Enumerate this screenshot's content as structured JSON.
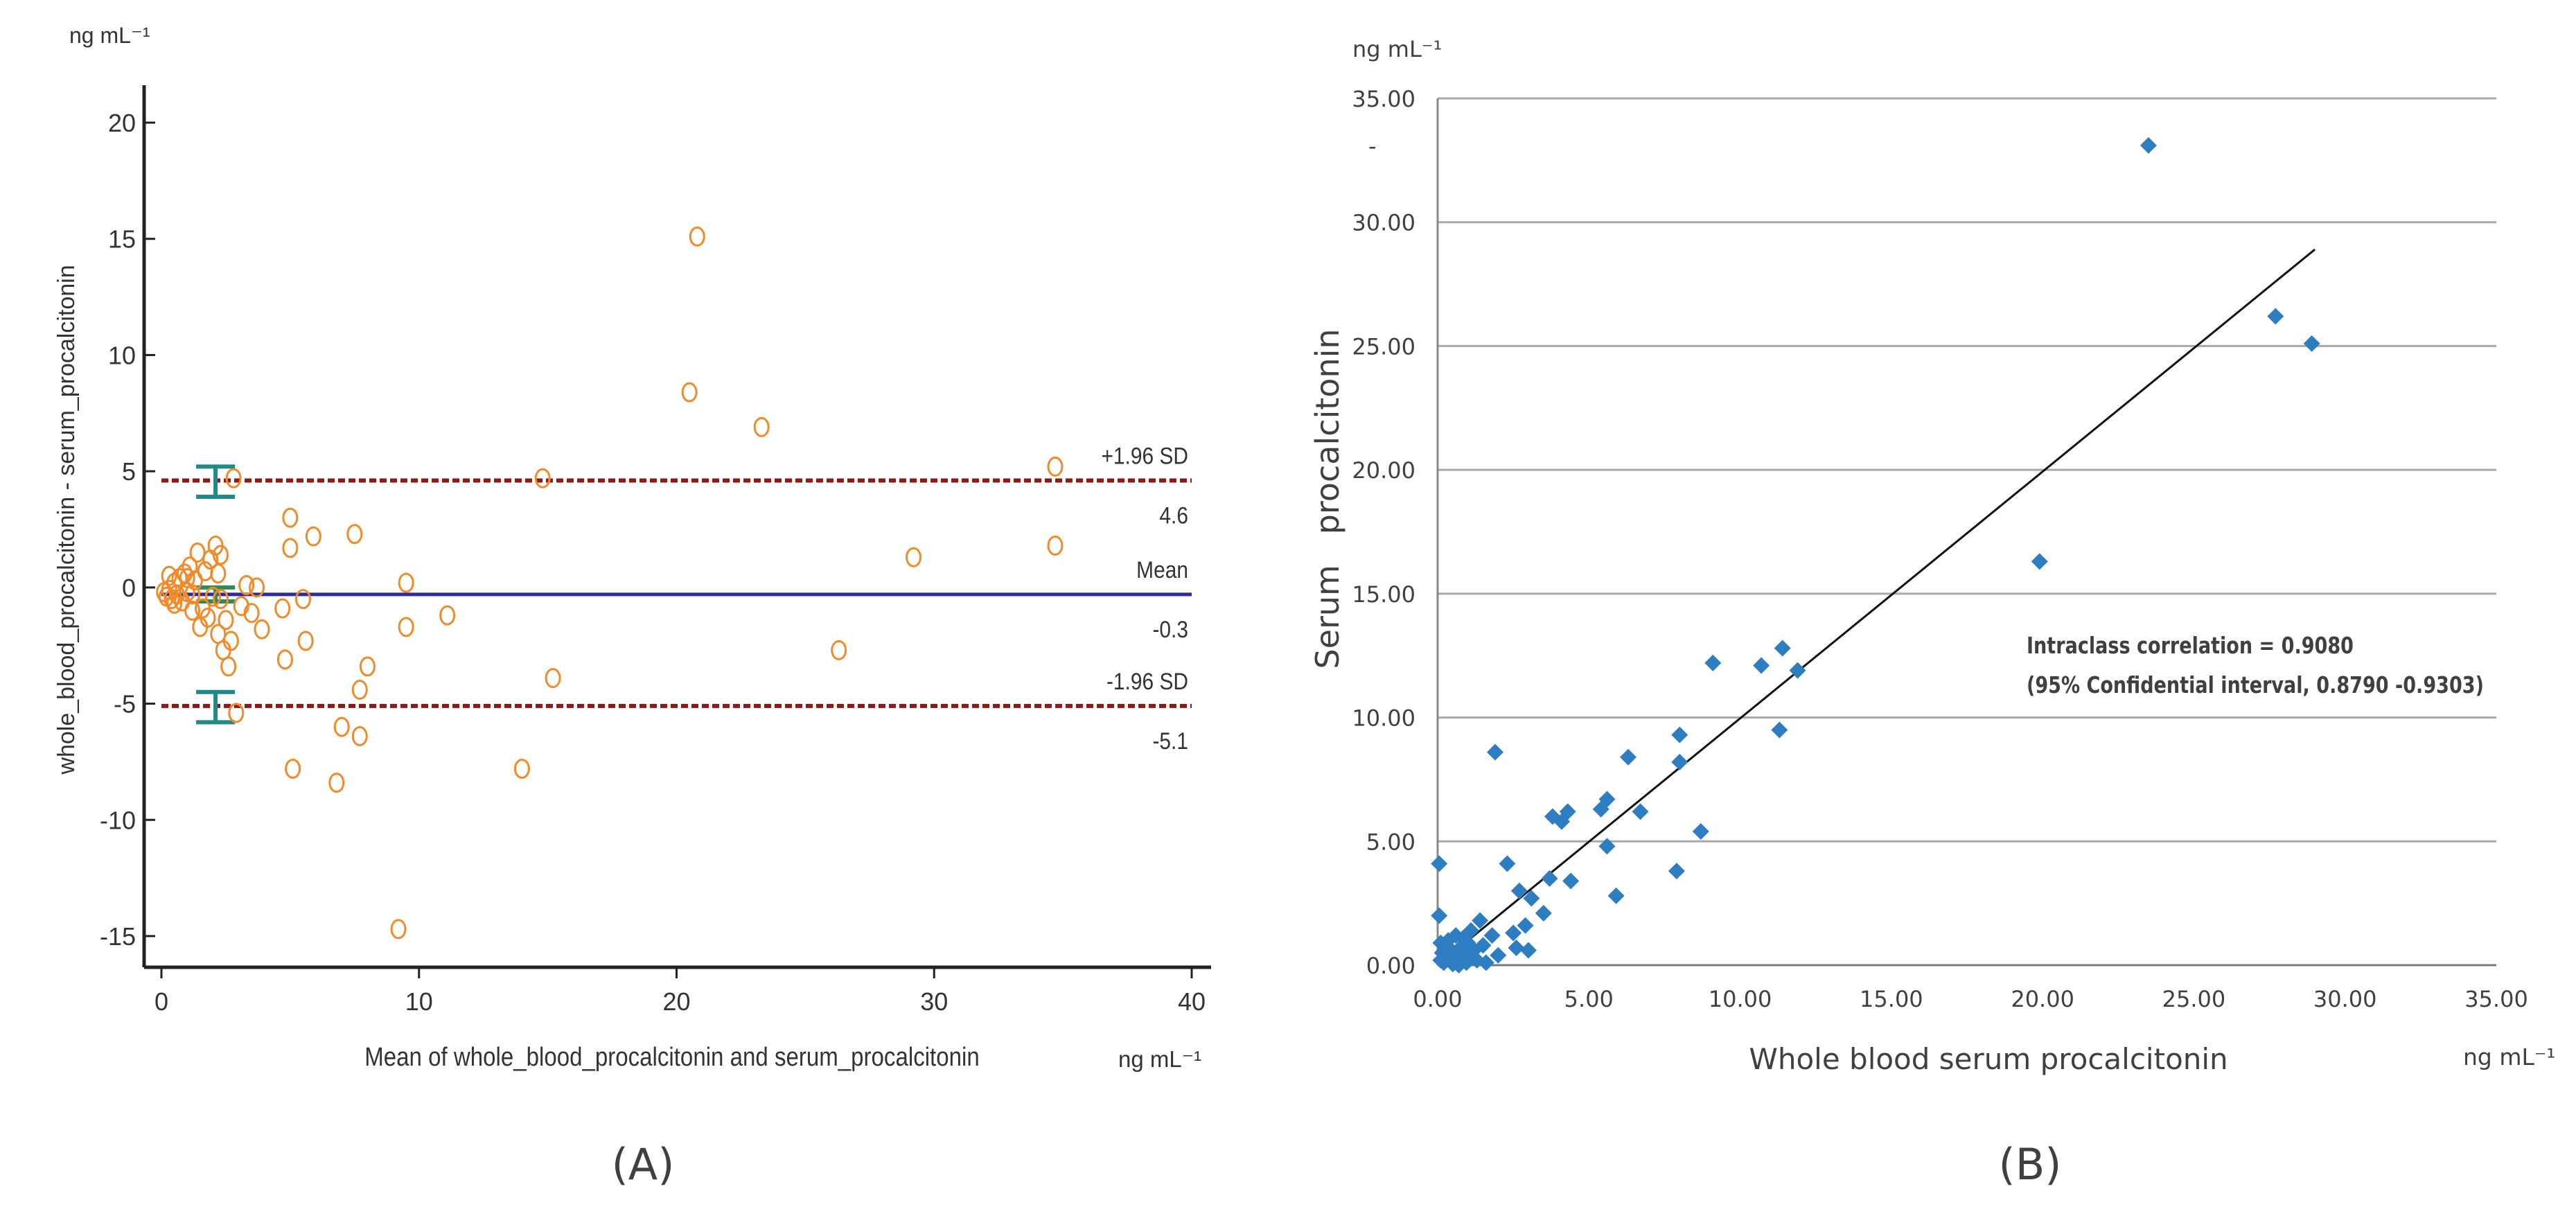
{
  "figure": {
    "panel_a_caption": "(A)",
    "panel_b_caption": "(B)"
  },
  "chart_data": [
    {
      "type": "scatter",
      "subtype": "bland-altman",
      "title": "",
      "ylabel": "whole_blood_procalcitonin - serum_procalcitonin",
      "xlabel": "Mean of whole_blood_procalcitonin and serum_procalcitonin",
      "x_unit": "ng mL⁻¹",
      "y_unit": "ng mL⁻¹",
      "xlim": [
        0,
        40
      ],
      "ylim": [
        -15,
        20
      ],
      "x_ticks": [
        0,
        10,
        20,
        30,
        40
      ],
      "y_ticks": [
        -15,
        -10,
        -5,
        0,
        5,
        10,
        15,
        20
      ],
      "reference_lines": [
        {
          "name": "upper_loa",
          "value": 4.6,
          "label": "+1.96 SD",
          "value_label": "4.6",
          "color": "#8b1a1a",
          "style": "dashed"
        },
        {
          "name": "mean",
          "value": -0.3,
          "label": "Mean",
          "value_label": "-0.3",
          "color": "#2b2b9e",
          "style": "solid"
        },
        {
          "name": "lower_loa",
          "value": -5.1,
          "label": "-1.96 SD",
          "value_label": "-5.1",
          "color": "#8b1a1a",
          "style": "dashed"
        }
      ],
      "error_bars": [
        {
          "x": 2.1,
          "center": 4.6,
          "low": 3.9,
          "high": 5.2,
          "color": "#1f8a86"
        },
        {
          "x": 2.1,
          "center": -0.3,
          "low": -0.6,
          "high": 0.0,
          "color": "#2e8b57"
        },
        {
          "x": 2.1,
          "center": -5.1,
          "low": -5.8,
          "high": -4.5,
          "color": "#1f8a86"
        }
      ],
      "points": [
        [
          0.1,
          -0.2
        ],
        [
          0.2,
          -0.4
        ],
        [
          0.3,
          -0.1
        ],
        [
          0.4,
          -0.5
        ],
        [
          0.5,
          0.2
        ],
        [
          0.6,
          -0.3
        ],
        [
          0.7,
          0.4
        ],
        [
          0.8,
          -0.6
        ],
        [
          0.9,
          0.6
        ],
        [
          1.0,
          -0.2
        ],
        [
          1.1,
          0.9
        ],
        [
          1.2,
          -1.0
        ],
        [
          1.3,
          0.3
        ],
        [
          1.4,
          1.5
        ],
        [
          1.5,
          -1.7
        ],
        [
          1.6,
          -0.9
        ],
        [
          1.7,
          0.7
        ],
        [
          1.8,
          -1.3
        ],
        [
          1.9,
          1.2
        ],
        [
          2.0,
          -0.4
        ],
        [
          2.1,
          1.8
        ],
        [
          2.2,
          -2.0
        ],
        [
          2.3,
          1.4
        ],
        [
          2.4,
          -2.7
        ],
        [
          2.5,
          -1.4
        ],
        [
          2.6,
          -3.4
        ],
        [
          2.7,
          -2.3
        ],
        [
          2.8,
          4.7
        ],
        [
          2.9,
          -5.4
        ],
        [
          3.1,
          -0.8
        ],
        [
          0.3,
          0.5
        ],
        [
          0.5,
          -0.7
        ],
        [
          1.0,
          0.4
        ],
        [
          1.2,
          -0.3
        ],
        [
          2.2,
          0.6
        ],
        [
          2.3,
          -0.5
        ],
        [
          3.3,
          0.1
        ],
        [
          3.5,
          -1.1
        ],
        [
          3.7,
          0.0
        ],
        [
          3.9,
          -1.8
        ],
        [
          4.7,
          -0.9
        ],
        [
          4.8,
          -3.1
        ],
        [
          5.0,
          3.0
        ],
        [
          5.0,
          1.7
        ],
        [
          5.1,
          -7.8
        ],
        [
          5.5,
          -0.5
        ],
        [
          5.6,
          -2.3
        ],
        [
          5.9,
          2.2
        ],
        [
          6.8,
          -8.4
        ],
        [
          7.0,
          -6.0
        ],
        [
          7.5,
          2.3
        ],
        [
          7.7,
          -4.4
        ],
        [
          7.7,
          -6.4
        ],
        [
          8.0,
          -3.4
        ],
        [
          9.2,
          -14.7
        ],
        [
          9.5,
          0.2
        ],
        [
          9.5,
          -1.7
        ],
        [
          11.1,
          -1.2
        ],
        [
          14.0,
          -7.8
        ],
        [
          14.8,
          4.7
        ],
        [
          15.2,
          -3.9
        ],
        [
          20.5,
          8.4
        ],
        [
          20.8,
          15.1
        ],
        [
          23.3,
          6.9
        ],
        [
          26.3,
          -2.7
        ],
        [
          29.2,
          1.3
        ],
        [
          34.7,
          5.2
        ],
        [
          34.7,
          1.8
        ]
      ]
    },
    {
      "type": "scatter",
      "title": "",
      "ylabel": "Serum   procalcitonin",
      "ylabel_dash": "-",
      "xlabel": "Whole blood serum procalcitonin",
      "x_unit": "ng mL⁻¹",
      "y_unit": "ng mL⁻¹",
      "xlim": [
        0,
        35
      ],
      "ylim": [
        0,
        35
      ],
      "grid": true,
      "x_ticks": [
        "0.00",
        "5.00",
        "10.00",
        "15.00",
        "20.00",
        "25.00",
        "30.00",
        "35.00"
      ],
      "y_ticks": [
        "0.00",
        "5.00",
        "10.00",
        "15.00",
        "20.00",
        "25.00",
        "30.00",
        "35.00"
      ],
      "annotation_line1": "Intraclass correlation = 0.9080",
      "annotation_line2": "(95% Confidential interval, 0.8790 -0.9303)",
      "fit_line": {
        "x0": 0.0,
        "y0": 0.0,
        "x1": 29.0,
        "y1": 28.9
      },
      "marker_color": "#2e7dc0",
      "points": [
        [
          0.1,
          0.2
        ],
        [
          0.15,
          0.5
        ],
        [
          0.2,
          0.1
        ],
        [
          0.25,
          0.8
        ],
        [
          0.3,
          0.3
        ],
        [
          0.35,
          1.0
        ],
        [
          0.4,
          0.2
        ],
        [
          0.45,
          0.6
        ],
        [
          0.5,
          0.05
        ],
        [
          0.55,
          0.4
        ],
        [
          0.6,
          1.2
        ],
        [
          0.65,
          0.3
        ],
        [
          0.7,
          0.0
        ],
        [
          0.75,
          0.7
        ],
        [
          0.8,
          0.2
        ],
        [
          0.85,
          1.1
        ],
        [
          0.9,
          0.4
        ],
        [
          0.95,
          0.1
        ],
        [
          1.0,
          0.9
        ],
        [
          1.05,
          0.3
        ],
        [
          1.1,
          1.4
        ],
        [
          1.2,
          0.6
        ],
        [
          1.3,
          0.2
        ],
        [
          1.4,
          1.8
        ],
        [
          1.5,
          0.8
        ],
        [
          1.6,
          0.1
        ],
        [
          1.8,
          1.2
        ],
        [
          2.0,
          0.4
        ],
        [
          0.05,
          4.1
        ],
        [
          0.05,
          2.0
        ],
        [
          0.1,
          0.9
        ],
        [
          1.9,
          8.6
        ],
        [
          2.3,
          4.1
        ],
        [
          2.5,
          1.3
        ],
        [
          2.6,
          0.7
        ],
        [
          2.7,
          3.0
        ],
        [
          2.9,
          1.6
        ],
        [
          3.0,
          0.6
        ],
        [
          3.1,
          2.7
        ],
        [
          3.5,
          2.1
        ],
        [
          3.7,
          3.5
        ],
        [
          3.8,
          6.0
        ],
        [
          4.1,
          5.8
        ],
        [
          4.3,
          6.2
        ],
        [
          4.4,
          3.4
        ],
        [
          5.4,
          6.3
        ],
        [
          5.6,
          6.7
        ],
        [
          5.6,
          4.8
        ],
        [
          5.9,
          2.8
        ],
        [
          6.3,
          8.4
        ],
        [
          6.7,
          6.2
        ],
        [
          7.9,
          3.8
        ],
        [
          8.0,
          8.2
        ],
        [
          8.0,
          9.3
        ],
        [
          8.7,
          5.4
        ],
        [
          9.1,
          12.2
        ],
        [
          10.7,
          12.1
        ],
        [
          11.3,
          9.5
        ],
        [
          11.4,
          12.8
        ],
        [
          11.9,
          11.9
        ],
        [
          19.9,
          16.3
        ],
        [
          23.5,
          33.1
        ],
        [
          27.7,
          26.2
        ],
        [
          28.9,
          25.1
        ]
      ]
    }
  ]
}
